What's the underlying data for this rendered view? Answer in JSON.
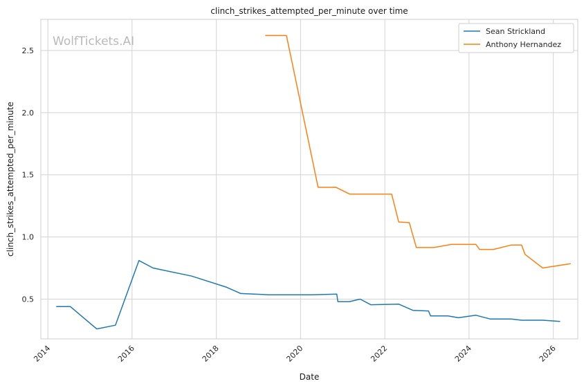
{
  "chart_data": {
    "type": "line",
    "title": "clinch_strikes_attempted_per_minute over time",
    "xlabel": "Date",
    "ylabel": "clinch_strikes_attempted_per_minute",
    "watermark": "WolfTickets.AI",
    "xlim": [
      "2013-11-01",
      "2026-08-01"
    ],
    "ylim": [
      0.18,
      2.75
    ],
    "x_ticks": [
      "2014-01-01",
      "2016-01-01",
      "2018-01-01",
      "2020-01-01",
      "2022-01-01",
      "2024-01-01",
      "2026-01-01"
    ],
    "x_tick_labels": [
      "2014",
      "2016",
      "2018",
      "2020",
      "2022",
      "2024",
      "2026"
    ],
    "y_ticks": [
      0.5,
      1.0,
      1.5,
      2.0,
      2.5
    ],
    "y_tick_labels": [
      "0.5",
      "1.0",
      "1.5",
      "2.0",
      "2.5"
    ],
    "grid": true,
    "legend_position": "top-right",
    "series": [
      {
        "name": "Sean Strickland",
        "color": "#1f77b4",
        "x": [
          "2014-03-15",
          "2014-07-15",
          "2015-03-01",
          "2015-08-10",
          "2016-03-01",
          "2016-07-01",
          "2017-06-01",
          "2018-04-01",
          "2018-08-01",
          "2019-04-01",
          "2020-04-01",
          "2020-11-10",
          "2020-11-20",
          "2021-03-01",
          "2021-06-01",
          "2021-09-01",
          "2022-05-01",
          "2022-09-01",
          "2023-01-15",
          "2023-02-01",
          "2023-07-01",
          "2023-10-01",
          "2024-03-01",
          "2024-07-01",
          "2025-01-01",
          "2025-04-01",
          "2025-10-01",
          "2026-03-01"
        ],
        "values": [
          0.44,
          0.44,
          0.26,
          0.29,
          0.81,
          0.75,
          0.685,
          0.595,
          0.545,
          0.535,
          0.535,
          0.54,
          0.48,
          0.48,
          0.5,
          0.455,
          0.46,
          0.41,
          0.405,
          0.365,
          0.365,
          0.35,
          0.37,
          0.34,
          0.34,
          0.33,
          0.33,
          0.32
        ]
      },
      {
        "name": "Anthony Hernandez",
        "color": "#ff7f0e",
        "x": [
          "2019-03-01",
          "2019-09-01",
          "2020-06-01",
          "2020-11-01",
          "2021-03-01",
          "2022-03-01",
          "2022-05-01",
          "2022-08-01",
          "2022-10-01",
          "2023-03-01",
          "2023-08-01",
          "2024-03-01",
          "2024-04-01",
          "2024-08-01",
          "2025-01-01",
          "2025-04-01",
          "2025-05-01",
          "2025-10-01",
          "2026-06-01"
        ],
        "values": [
          2.62,
          2.62,
          1.4,
          1.4,
          1.345,
          1.345,
          1.12,
          1.115,
          0.915,
          0.915,
          0.94,
          0.94,
          0.9,
          0.9,
          0.935,
          0.935,
          0.86,
          0.75,
          0.785
        ]
      }
    ]
  }
}
